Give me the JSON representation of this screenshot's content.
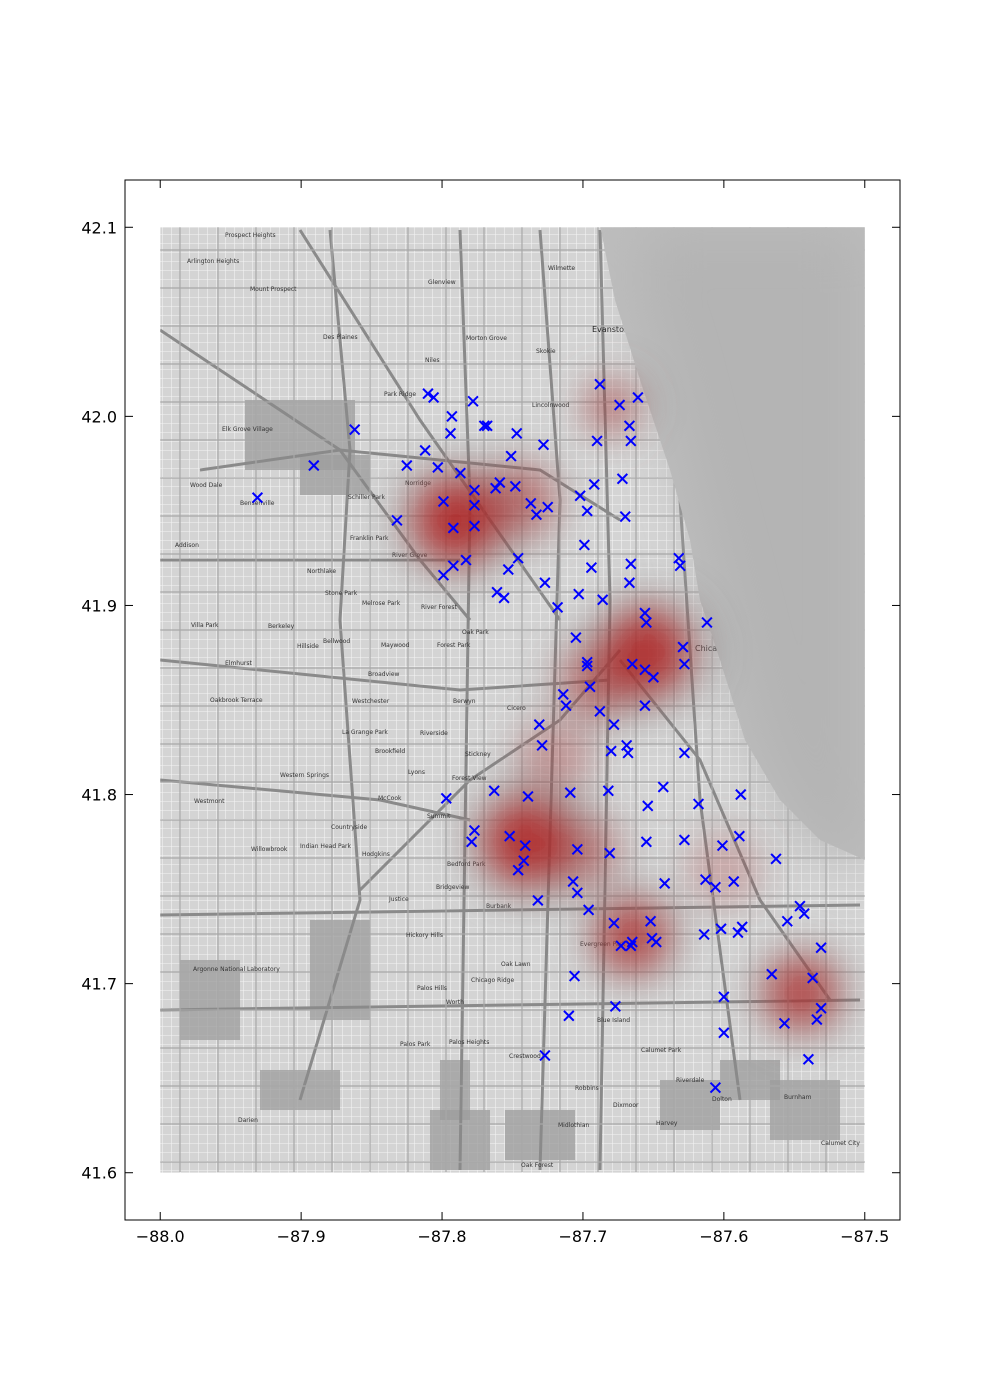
{
  "chart_data": {
    "type": "scatter",
    "title": "",
    "xlabel": "",
    "ylabel": "",
    "xlim": [
      -88.025,
      -87.475
    ],
    "ylim": [
      41.575,
      42.125
    ],
    "map_extent": {
      "x": [
        -88.0,
        -87.5
      ],
      "y": [
        41.6,
        42.1
      ]
    },
    "x_ticks": [
      -88.0,
      -87.9,
      -87.8,
      -87.7,
      -87.6,
      -87.5
    ],
    "x_tick_labels": [
      "−88.0",
      "−87.9",
      "−87.8",
      "−87.7",
      "−87.6",
      "−87.5"
    ],
    "y_ticks": [
      41.6,
      41.7,
      41.8,
      41.9,
      42.0,
      42.1
    ],
    "y_tick_labels": [
      "41.6",
      "41.7",
      "41.8",
      "41.9",
      "42.0",
      "42.1"
    ],
    "grid": false,
    "background": "grayscale street map",
    "marker": "x",
    "marker_color": "#0000ff",
    "heat_color": "#b22222",
    "map_labels": [
      "Prospect Heights",
      "Arlington Heights",
      "Mount Prospect",
      "Glenview",
      "Wilmette",
      "Evanston",
      "Des Plaines",
      "Park Ridge",
      "Niles",
      "Morton Grove",
      "Skokie",
      "Lincolnwood",
      "Elk Grove Village",
      "Schiller Park",
      "Franklin Park",
      "River Grove",
      "Norridge",
      "Wood Dale",
      "Bensenville",
      "Addison",
      "Northlake",
      "Stone Park",
      "Melrose Park",
      "River Forest",
      "Oak Park",
      "Villa Park",
      "Berkeley",
      "Bellwood",
      "Maywood",
      "Forest Park",
      "Hillside",
      "Broadview",
      "Elmhurst",
      "Westchester",
      "Berwyn",
      "Cicero",
      "Oakbrook Terrace",
      "La Grange Park",
      "Riverside",
      "Brookfield",
      "Stickney",
      "Lyons",
      "Western Springs",
      "Forest View",
      "McCook",
      "Westmont",
      "Summit",
      "Countryside",
      "Willowbrook",
      "Indian Head Park",
      "Hodgkins",
      "Bedford Park",
      "Bridgeview",
      "Burbank",
      "Justice",
      "Hickory Hills",
      "Oak Lawn",
      "Evergreen Park",
      "Chicago Ridge",
      "Palos Hills",
      "Worth",
      "Palos Park",
      "Palos Heights",
      "Crestwood",
      "Blue Island",
      "Calumet Park",
      "Riverdale",
      "Robbins",
      "Midlothian",
      "Oak Forest",
      "Dolton",
      "Burnham",
      "Calumet City",
      "Harvey",
      "Dixmoor",
      "Darien",
      "Argonne National Laboratory",
      "Chicago"
    ],
    "series": [
      {
        "points": [
          [
            -87.931,
            41.957
          ],
          [
            -87.891,
            41.974
          ],
          [
            -87.862,
            41.993
          ],
          [
            -87.832,
            41.945
          ],
          [
            -87.825,
            41.974
          ],
          [
            -87.812,
            41.982
          ],
          [
            -87.81,
            42.012
          ],
          [
            -87.806,
            42.01
          ],
          [
            -87.803,
            41.973
          ],
          [
            -87.799,
            41.955
          ],
          [
            -87.799,
            41.916
          ],
          [
            -87.794,
            41.991
          ],
          [
            -87.793,
            42.0
          ],
          [
            -87.792,
            41.941
          ],
          [
            -87.792,
            41.921
          ],
          [
            -87.783,
            41.924
          ],
          [
            -87.787,
            41.97
          ],
          [
            -87.777,
            41.961
          ],
          [
            -87.777,
            41.953
          ],
          [
            -87.777,
            41.942
          ],
          [
            -87.778,
            42.008
          ],
          [
            -87.77,
            41.995
          ],
          [
            -87.768,
            41.995
          ],
          [
            -87.762,
            41.962
          ],
          [
            -87.759,
            41.965
          ],
          [
            -87.761,
            41.907
          ],
          [
            -87.756,
            41.904
          ],
          [
            -87.753,
            41.919
          ],
          [
            -87.751,
            41.979
          ],
          [
            -87.748,
            41.963
          ],
          [
            -87.747,
            41.991
          ],
          [
            -87.746,
            41.925
          ],
          [
            -87.737,
            41.954
          ],
          [
            -87.733,
            41.948
          ],
          [
            -87.728,
            41.985
          ],
          [
            -87.727,
            41.912
          ],
          [
            -87.725,
            41.952
          ],
          [
            -87.718,
            41.899
          ],
          [
            -87.702,
            41.958
          ],
          [
            -87.703,
            41.906
          ],
          [
            -87.699,
            41.932
          ],
          [
            -87.697,
            41.95
          ],
          [
            -87.694,
            41.92
          ],
          [
            -87.692,
            41.964
          ],
          [
            -87.69,
            41.987
          ],
          [
            -87.688,
            42.017
          ],
          [
            -87.686,
            41.903
          ],
          [
            -87.674,
            42.006
          ],
          [
            -87.672,
            41.967
          ],
          [
            -87.67,
            41.947
          ],
          [
            -87.667,
            41.995
          ],
          [
            -87.666,
            41.987
          ],
          [
            -87.666,
            41.922
          ],
          [
            -87.667,
            41.912
          ],
          [
            -87.661,
            42.01
          ],
          [
            -87.632,
            41.925
          ],
          [
            -87.631,
            41.921
          ],
          [
            -87.612,
            41.891
          ],
          [
            -87.656,
            41.896
          ],
          [
            -87.655,
            41.891
          ],
          [
            -87.629,
            41.878
          ],
          [
            -87.628,
            41.869
          ],
          [
            -87.705,
            41.883
          ],
          [
            -87.697,
            41.87
          ],
          [
            -87.697,
            41.868
          ],
          [
            -87.665,
            41.869
          ],
          [
            -87.656,
            41.866
          ],
          [
            -87.65,
            41.862
          ],
          [
            -87.695,
            41.857
          ],
          [
            -87.714,
            41.853
          ],
          [
            -87.712,
            41.847
          ],
          [
            -87.688,
            41.844
          ],
          [
            -87.678,
            41.837
          ],
          [
            -87.656,
            41.847
          ],
          [
            -87.731,
            41.837
          ],
          [
            -87.729,
            41.826
          ],
          [
            -87.68,
            41.823
          ],
          [
            -87.669,
            41.826
          ],
          [
            -87.668,
            41.822
          ],
          [
            -87.628,
            41.822
          ],
          [
            -87.643,
            41.804
          ],
          [
            -87.682,
            41.802
          ],
          [
            -87.709,
            41.801
          ],
          [
            -87.739,
            41.799
          ],
          [
            -87.763,
            41.802
          ],
          [
            -87.797,
            41.798
          ],
          [
            -87.777,
            41.781
          ],
          [
            -87.779,
            41.775
          ],
          [
            -87.752,
            41.778
          ],
          [
            -87.741,
            41.773
          ],
          [
            -87.742,
            41.765
          ],
          [
            -87.746,
            41.76
          ],
          [
            -87.704,
            41.771
          ],
          [
            -87.681,
            41.769
          ],
          [
            -87.655,
            41.775
          ],
          [
            -87.654,
            41.794
          ],
          [
            -87.628,
            41.776
          ],
          [
            -87.618,
            41.795
          ],
          [
            -87.601,
            41.773
          ],
          [
            -87.588,
            41.8
          ],
          [
            -87.589,
            41.778
          ],
          [
            -87.563,
            41.766
          ],
          [
            -87.707,
            41.754
          ],
          [
            -87.704,
            41.748
          ],
          [
            -87.732,
            41.744
          ],
          [
            -87.696,
            41.739
          ],
          [
            -87.642,
            41.753
          ],
          [
            -87.613,
            41.755
          ],
          [
            -87.606,
            41.751
          ],
          [
            -87.593,
            41.754
          ],
          [
            -87.678,
            41.732
          ],
          [
            -87.673,
            41.72
          ],
          [
            -87.666,
            41.72
          ],
          [
            -87.665,
            41.722
          ],
          [
            -87.652,
            41.733
          ],
          [
            -87.651,
            41.724
          ],
          [
            -87.648,
            41.722
          ],
          [
            -87.614,
            41.726
          ],
          [
            -87.602,
            41.729
          ],
          [
            -87.59,
            41.727
          ],
          [
            -87.587,
            41.73
          ],
          [
            -87.555,
            41.733
          ],
          [
            -87.546,
            41.741
          ],
          [
            -87.543,
            41.737
          ],
          [
            -87.531,
            41.719
          ],
          [
            -87.706,
            41.704
          ],
          [
            -87.566,
            41.705
          ],
          [
            -87.537,
            41.703
          ],
          [
            -87.6,
            41.693
          ],
          [
            -87.677,
            41.688
          ],
          [
            -87.531,
            41.687
          ],
          [
            -87.71,
            41.683
          ],
          [
            -87.534,
            41.681
          ],
          [
            -87.557,
            41.679
          ],
          [
            -87.6,
            41.674
          ],
          [
            -87.727,
            41.662
          ],
          [
            -87.54,
            41.66
          ],
          [
            -87.606,
            41.645
          ]
        ]
      }
    ],
    "heat_centers": [
      {
        "x": -87.79,
        "y": 41.945,
        "weight": 1.0,
        "spread": 0.03
      },
      {
        "x": -87.745,
        "y": 41.955,
        "weight": 0.55,
        "spread": 0.025
      },
      {
        "x": -87.68,
        "y": 42.005,
        "weight": 0.55,
        "spread": 0.018
      },
      {
        "x": -87.655,
        "y": 41.875,
        "weight": 1.0,
        "spread": 0.03
      },
      {
        "x": -87.69,
        "y": 41.86,
        "weight": 0.55,
        "spread": 0.025
      },
      {
        "x": -87.74,
        "y": 41.775,
        "weight": 1.0,
        "spread": 0.03
      },
      {
        "x": -87.7,
        "y": 41.77,
        "weight": 0.45,
        "spread": 0.025
      },
      {
        "x": -87.665,
        "y": 41.725,
        "weight": 0.85,
        "spread": 0.025
      },
      {
        "x": -87.545,
        "y": 41.695,
        "weight": 0.85,
        "spread": 0.025
      },
      {
        "x": -87.72,
        "y": 41.82,
        "weight": 0.35,
        "spread": 0.025
      },
      {
        "x": -87.6,
        "y": 41.76,
        "weight": 0.25,
        "spread": 0.025
      }
    ]
  }
}
